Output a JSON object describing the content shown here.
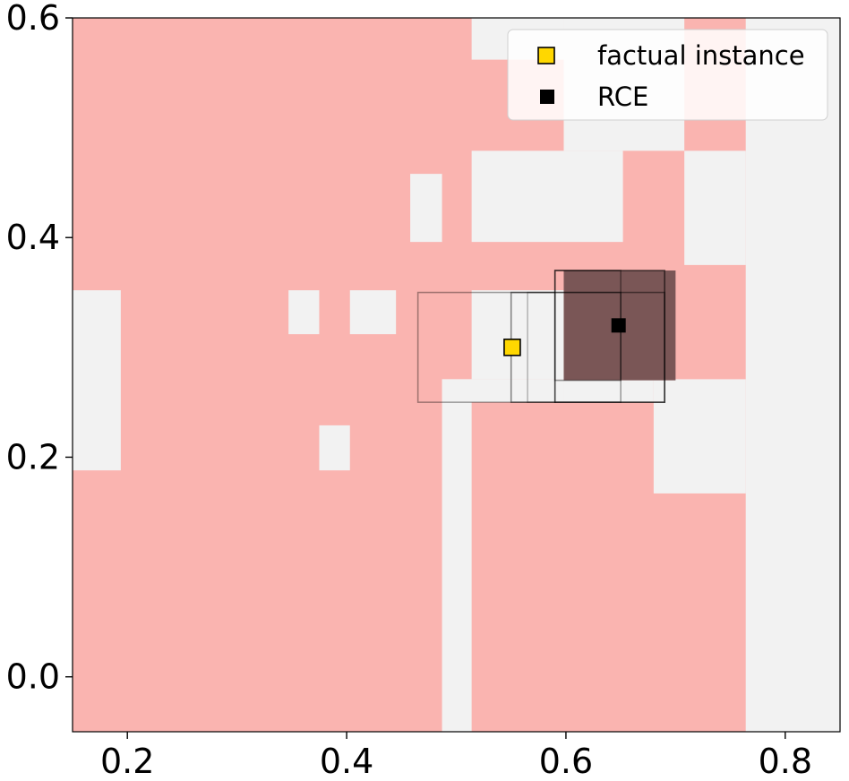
{
  "chart_data": {
    "type": "heatmap",
    "title": "",
    "xlabel": "",
    "ylabel": "",
    "xlim": [
      0.15,
      0.85
    ],
    "ylim": [
      -0.05,
      0.6
    ],
    "grid": false,
    "x_ticks": [
      {
        "value": 0.2,
        "label": "0.2"
      },
      {
        "value": 0.4,
        "label": "0.4"
      },
      {
        "value": 0.6,
        "label": "0.6"
      },
      {
        "value": 0.8,
        "label": "0.8"
      }
    ],
    "y_ticks": [
      {
        "value": 0.0,
        "label": "0.0"
      },
      {
        "value": 0.2,
        "label": "0.2"
      },
      {
        "value": 0.4,
        "label": "0.4"
      },
      {
        "value": 0.6,
        "label": "0.6"
      }
    ],
    "colors": {
      "region_positive": "#fab4b0",
      "region_negative": "#f2f2f2",
      "factual_marker": "#ffd700",
      "rce_marker": "#000000",
      "rce_box_fill": "#7a5656",
      "box_stroke": "#000000"
    },
    "negative_regions": [
      {
        "x": [
          0.15,
          0.194
        ],
        "y": [
          0.188,
          0.352
        ]
      },
      {
        "x": [
          0.347,
          0.375
        ],
        "y": [
          0.312,
          0.352
        ]
      },
      {
        "x": [
          0.403,
          0.445
        ],
        "y": [
          0.312,
          0.352
        ]
      },
      {
        "x": [
          0.375,
          0.403
        ],
        "y": [
          0.188,
          0.229
        ]
      },
      {
        "x": [
          0.458,
          0.487
        ],
        "y": [
          0.396,
          0.458
        ]
      },
      {
        "x": [
          0.514,
          0.598
        ],
        "y": [
          0.562,
          0.6
        ]
      },
      {
        "x": [
          0.514,
          0.652
        ],
        "y": [
          0.396,
          0.479
        ]
      },
      {
        "x": [
          0.598,
          0.708
        ],
        "y": [
          0.479,
          0.6
        ]
      },
      {
        "x": [
          0.708,
          0.764
        ],
        "y": [
          0.375,
          0.479
        ]
      },
      {
        "x": [
          0.764,
          0.85
        ],
        "y": [
          -0.05,
          0.6
        ]
      },
      {
        "x": [
          0.487,
          0.514
        ],
        "y": [
          -0.05,
          0.271
        ]
      },
      {
        "x": [
          0.487,
          0.598
        ],
        "y": [
          0.25,
          0.271
        ]
      },
      {
        "x": [
          0.514,
          0.598
        ],
        "y": [
          0.271,
          0.352
        ]
      },
      {
        "x": [
          0.68,
          0.764
        ],
        "y": [
          0.167,
          0.271
        ]
      },
      {
        "x": [
          0.598,
          0.68
        ],
        "y": [
          0.25,
          0.271
        ]
      }
    ],
    "candidate_boxes": [
      {
        "x": [
          0.465,
          0.65
        ],
        "y": [
          0.25,
          0.35
        ],
        "opacity": 0.35
      },
      {
        "x": [
          0.55,
          0.69
        ],
        "y": [
          0.25,
          0.35
        ],
        "opacity": 0.45
      },
      {
        "x": [
          0.565,
          0.59
        ],
        "y": [
          0.25,
          0.35
        ],
        "opacity": 0.25
      },
      {
        "x": [
          0.59,
          0.69
        ],
        "y": [
          0.25,
          0.37
        ],
        "opacity": 0.6
      },
      {
        "x": [
          0.59,
          0.65
        ],
        "y": [
          0.27,
          0.37
        ],
        "opacity": 0.4
      }
    ],
    "rce_box": {
      "x": [
        0.598,
        0.7
      ],
      "y": [
        0.27,
        0.37
      ]
    },
    "series": [
      {
        "name": "factual instance",
        "points": [
          {
            "x": 0.551,
            "y": 0.3
          }
        ]
      },
      {
        "name": "RCE",
        "points": [
          {
            "x": 0.648,
            "y": 0.32
          }
        ]
      }
    ],
    "legend": {
      "placement": "top-right",
      "entries": [
        "factual instance",
        "RCE"
      ]
    }
  }
}
